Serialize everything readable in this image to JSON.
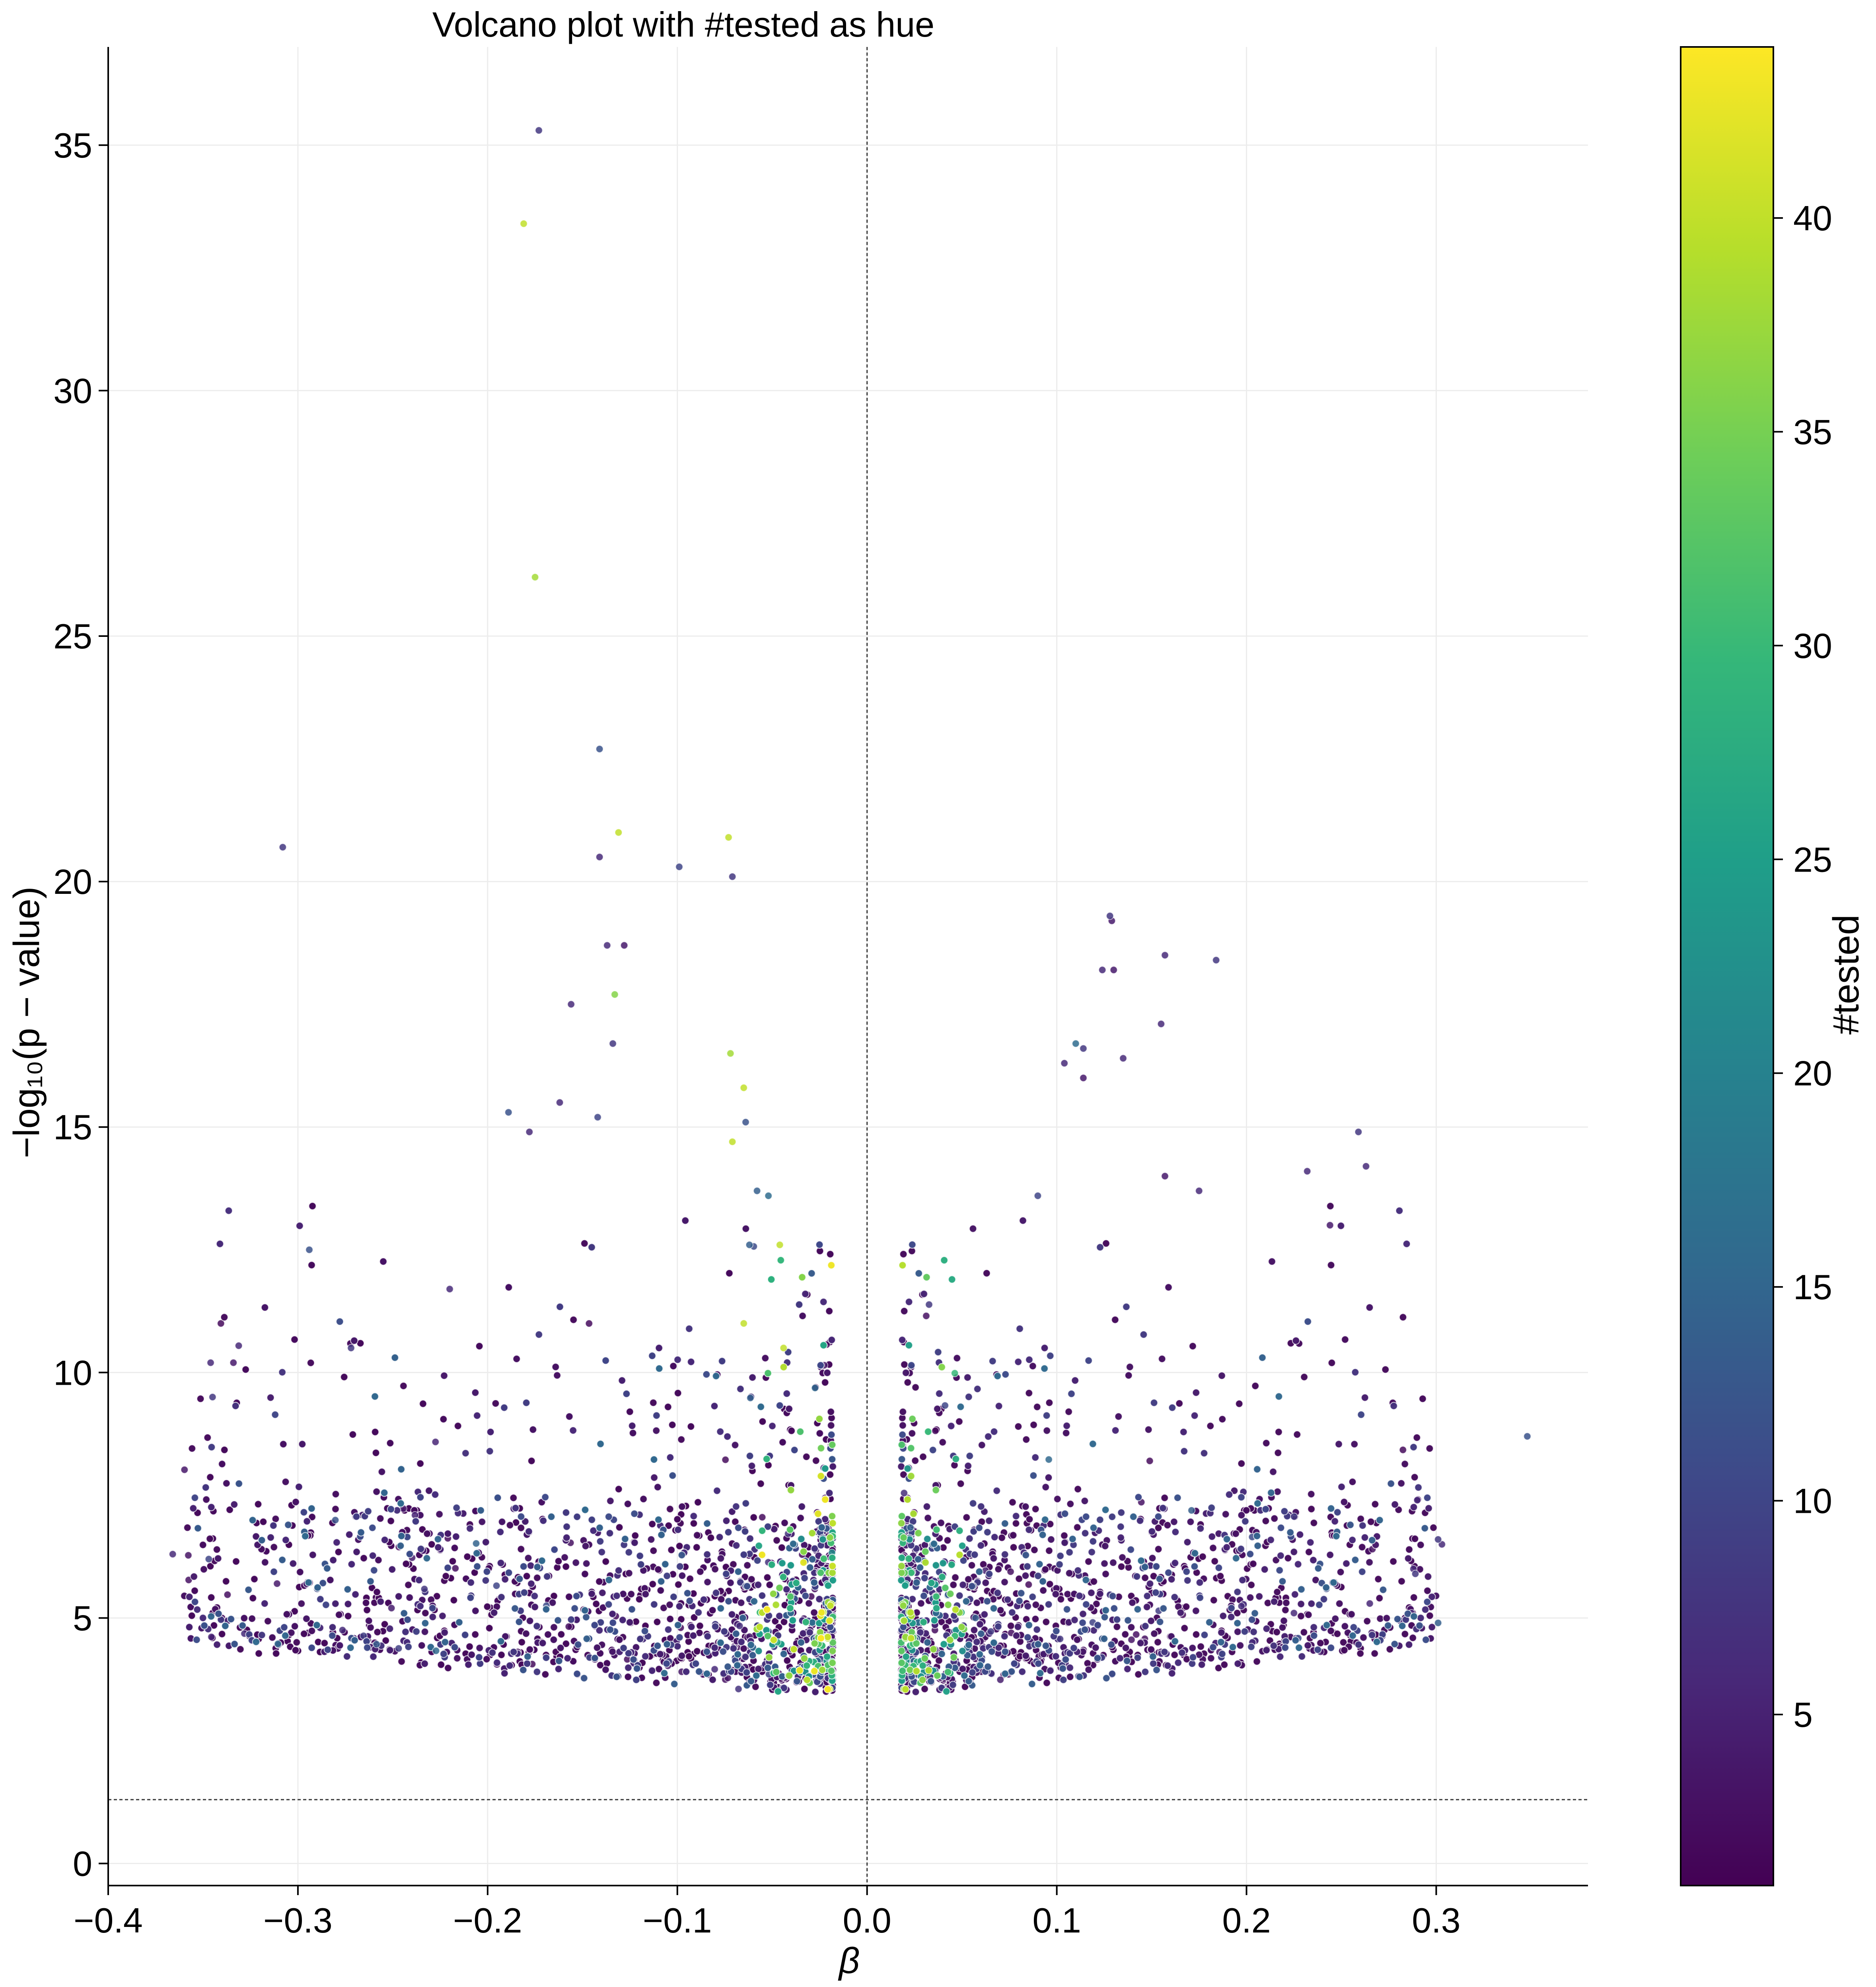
{
  "chart_data": {
    "type": "scatter",
    "title": "Volcano plot with #tested as hue",
    "xlabel": "β",
    "ylabel": "−log₁₀(p − value)",
    "xlim": [
      -0.4,
      0.38
    ],
    "ylim": [
      -0.45,
      37
    ],
    "x_ticks": [
      -0.4,
      -0.3,
      -0.2,
      -0.1,
      0.0,
      0.1,
      0.2,
      0.3
    ],
    "x_tick_labels": [
      "−0.4",
      "−0.3",
      "−0.2",
      "−0.1",
      "0.0",
      "0.1",
      "0.2",
      "0.3"
    ],
    "y_ticks": [
      0,
      5,
      10,
      15,
      20,
      25,
      30,
      35
    ],
    "y_tick_labels": [
      "0",
      "5",
      "10",
      "15",
      "20",
      "25",
      "30",
      "35"
    ],
    "grid": true,
    "reference_lines": {
      "vertical_x": 0.0,
      "horizontal_y": 1.3
    },
    "colorbar": {
      "label": "#tested",
      "min": 1,
      "max": 44,
      "ticks": [
        5,
        10,
        15,
        20,
        25,
        30,
        35,
        40
      ],
      "tick_labels": [
        "5",
        "10",
        "15",
        "20",
        "25",
        "30",
        "35",
        "40"
      ],
      "colormap": "viridis",
      "colors": [
        "#440154",
        "#482878",
        "#3e4989",
        "#31688e",
        "#26828e",
        "#1f9e89",
        "#35b779",
        "#6ece58",
        "#b5de2b",
        "#fde725"
      ]
    },
    "points": [
      [
        -0.173,
        35.3,
        8
      ],
      [
        -0.181,
        33.4,
        40
      ],
      [
        -0.175,
        26.2,
        38
      ],
      [
        -0.141,
        22.7,
        12
      ],
      [
        -0.131,
        21.0,
        40
      ],
      [
        -0.073,
        20.9,
        40
      ],
      [
        -0.308,
        20.7,
        8
      ],
      [
        -0.141,
        20.5,
        6
      ],
      [
        -0.099,
        20.3,
        10
      ],
      [
        -0.071,
        20.1,
        8
      ],
      [
        -0.137,
        18.7,
        6
      ],
      [
        -0.133,
        17.7,
        36
      ],
      [
        -0.156,
        17.5,
        6
      ],
      [
        -0.134,
        16.7,
        8
      ],
      [
        -0.072,
        16.5,
        38
      ],
      [
        -0.162,
        15.5,
        6
      ],
      [
        -0.189,
        15.3,
        12
      ],
      [
        -0.142,
        15.2,
        10
      ],
      [
        -0.065,
        15.8,
        40
      ],
      [
        -0.064,
        15.1,
        12
      ],
      [
        -0.071,
        14.7,
        40
      ],
      [
        -0.294,
        12.5,
        12
      ],
      [
        -0.334,
        10.2,
        4
      ],
      [
        -0.272,
        10.5,
        8
      ],
      [
        -0.346,
        10.2,
        6
      ],
      [
        -0.345,
        9.5,
        8
      ],
      [
        -0.366,
        6.3,
        6
      ],
      [
        -0.347,
        6.2,
        10
      ],
      [
        -0.311,
        5.7,
        4
      ],
      [
        -0.22,
        11.7,
        6
      ],
      [
        -0.058,
        13.7,
        14
      ],
      [
        -0.052,
        13.6,
        16
      ],
      [
        -0.062,
        12.6,
        14
      ],
      [
        -0.046,
        12.6,
        40
      ],
      [
        -0.065,
        11.0,
        40
      ],
      [
        -0.044,
        10.5,
        40
      ],
      [
        -0.128,
        18.7,
        4
      ],
      [
        -0.178,
        14.9,
        6
      ],
      [
        0.128,
        19.3,
        8
      ],
      [
        0.129,
        19.2,
        4
      ],
      [
        0.157,
        18.5,
        6
      ],
      [
        0.184,
        18.4,
        8
      ],
      [
        0.124,
        18.2,
        6
      ],
      [
        0.13,
        18.2,
        4
      ],
      [
        0.155,
        17.1,
        6
      ],
      [
        0.11,
        16.7,
        16
      ],
      [
        0.114,
        16.6,
        8
      ],
      [
        0.104,
        16.3,
        6
      ],
      [
        0.114,
        16.0,
        4
      ],
      [
        0.135,
        16.4,
        6
      ],
      [
        0.259,
        14.9,
        8
      ],
      [
        0.263,
        14.2,
        6
      ],
      [
        0.232,
        14.1,
        6
      ],
      [
        0.157,
        14.0,
        4
      ],
      [
        0.175,
        13.7,
        6
      ],
      [
        0.09,
        13.6,
        10
      ],
      [
        0.348,
        8.7,
        12
      ],
      [
        0.301,
        6.6,
        8
      ],
      [
        0.303,
        6.5,
        6
      ],
      [
        0.29,
        7.4,
        6
      ],
      [
        0.288,
        6.0,
        6
      ],
      [
        0.289,
        5.9,
        8
      ],
      [
        0.287,
        5.1,
        6
      ],
      [
        0.301,
        4.9,
        14
      ],
      [
        0.266,
        4.7,
        4
      ],
      [
        0.244,
        13.0,
        4
      ],
      [
        0.225,
        5.1,
        6
      ]
    ],
    "clusters": [
      {
        "side": "negative",
        "x_range": [
          -0.36,
          -0.018
        ],
        "y_range": [
          3.4,
          14
        ],
        "color_range": [
          2,
          44
        ],
        "count": 4200
      },
      {
        "side": "positive",
        "x_range": [
          0.018,
          0.3
        ],
        "y_range": [
          3.4,
          14
        ],
        "color_range": [
          2,
          40
        ],
        "count": 3000
      }
    ]
  }
}
